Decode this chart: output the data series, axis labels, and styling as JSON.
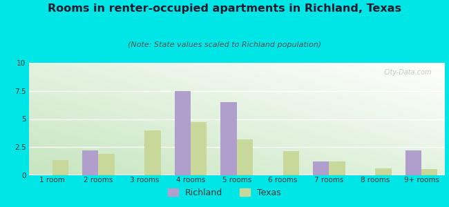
{
  "title": "Rooms in renter-occupied apartments in Richland, Texas",
  "subtitle": "(Note: State values scaled to Richland population)",
  "categories": [
    "1 room",
    "2 rooms",
    "3 rooms",
    "4 rooms",
    "5 rooms",
    "6 rooms",
    "7 rooms",
    "8 rooms",
    "9+ rooms"
  ],
  "richland_values": [
    0,
    2.2,
    0,
    7.5,
    6.5,
    0,
    1.2,
    0,
    2.2
  ],
  "texas_values": [
    1.3,
    1.9,
    4.0,
    4.7,
    3.2,
    2.1,
    1.2,
    0.6,
    0.5
  ],
  "richland_color": "#b09fcc",
  "texas_color": "#c8d89a",
  "ylim": [
    0,
    10
  ],
  "yticks": [
    0,
    2.5,
    5,
    7.5,
    10
  ],
  "outer_background": "#00e5e5",
  "grid_color": "#dddddd",
  "bar_width": 0.35,
  "title_fontsize": 11.5,
  "subtitle_fontsize": 8,
  "tick_fontsize": 7.5,
  "legend_fontsize": 9,
  "bg_color_left": "#c8e6c0",
  "bg_color_right": "#f8fff8"
}
